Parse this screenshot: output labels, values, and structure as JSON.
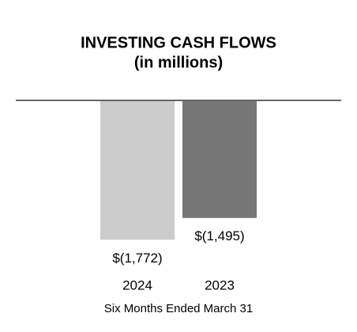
{
  "chart_data": {
    "type": "bar",
    "title": "INVESTING CASH FLOWS",
    "subtitle": "(in millions)",
    "categories": [
      "2024",
      "2023"
    ],
    "values": [
      -1772,
      -1495
    ],
    "value_labels": [
      "$(1,772)",
      "$(1,495)"
    ],
    "colors": [
      "#cccccc",
      "#777777"
    ],
    "x_label": "Six Months Ended March 31",
    "ylim": [
      -2000,
      0
    ]
  }
}
